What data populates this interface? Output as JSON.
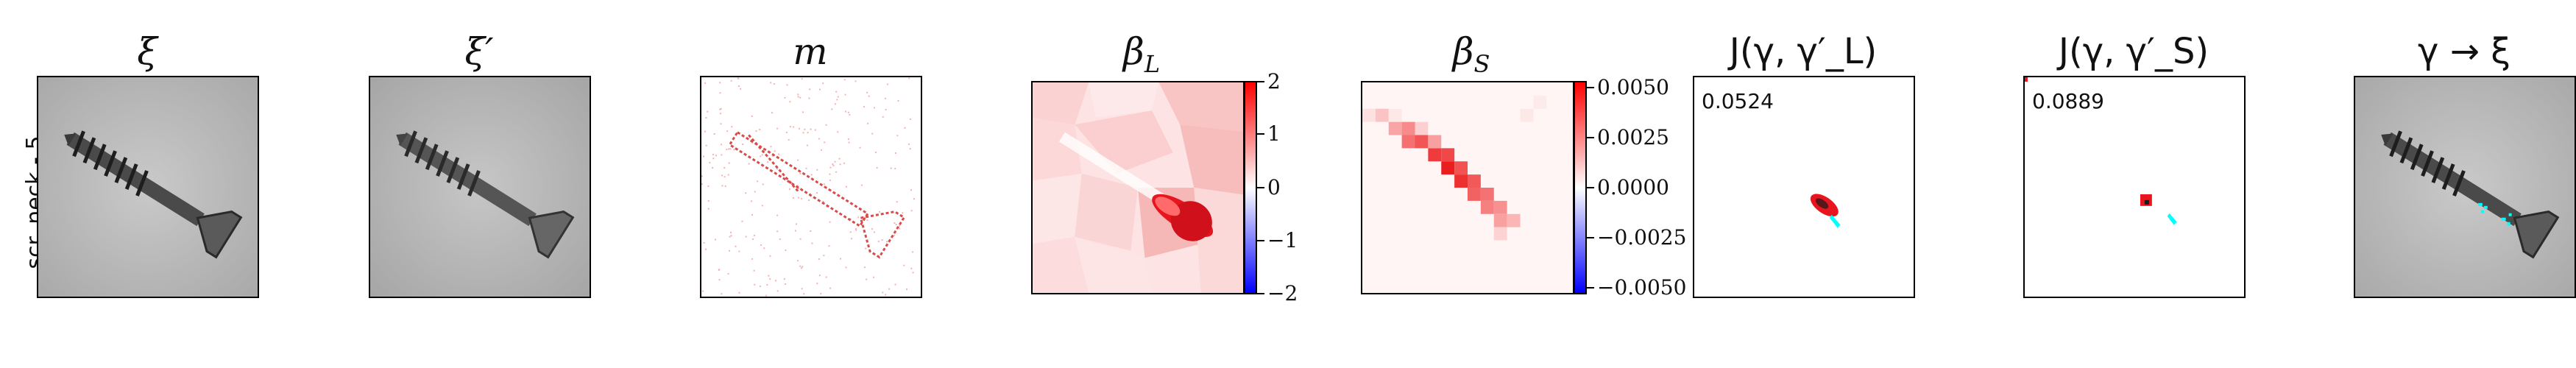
{
  "row_label": "scr. neck - 5",
  "panels": [
    {
      "title": "ξ"
    },
    {
      "title": "ξ′"
    },
    {
      "title": "m"
    },
    {
      "title": "β_L",
      "title_main": "β",
      "title_sub": "L"
    },
    {
      "title": "β_S",
      "title_main": "β",
      "title_sub": "S"
    },
    {
      "title": "J(γ, γ′_L)"
    },
    {
      "title": "J(γ, γ′_S)"
    },
    {
      "title": "γ → ξ"
    }
  ],
  "colorbar_L": {
    "ticks": [
      "2",
      "1",
      "0",
      "−1",
      "−2"
    ],
    "range": [
      -2,
      2
    ]
  },
  "colorbar_S": {
    "ticks": [
      "0.0050",
      "0.0025",
      "0.0000",
      "−0.0025",
      "−0.0050"
    ],
    "range": [
      -0.005,
      0.005
    ]
  },
  "scores": {
    "L": "0.0524",
    "S": "0.0889"
  },
  "colors": {
    "positive": "#e8141e",
    "negative": "#1a1aff",
    "highlight": "#00ffff"
  },
  "colormap": "bwr"
}
